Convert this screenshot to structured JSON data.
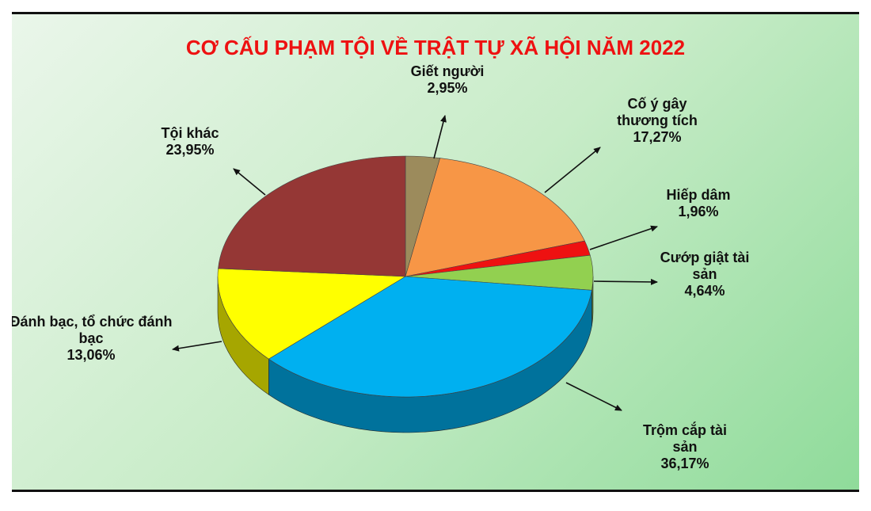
{
  "chart_data": {
    "type": "pie",
    "title": "CƠ CẤU PHẠM TỘI VỀ TRẬT TỰ XÃ HỘI NĂM 2022",
    "categories": [
      "Giết người",
      "Cố ý gây thương tích",
      "Hiếp dâm",
      "Cướp giật tài sản",
      "Trộm cắp tài sản",
      "Đánh bạc, tổ chức đánh bạc",
      "Tội khác"
    ],
    "values": [
      2.95,
      17.27,
      1.96,
      4.64,
      36.17,
      13.06,
      23.95
    ],
    "value_labels": [
      "2,95%",
      "17,27%",
      "1,96%",
      "4,64%",
      "36,17%",
      "13,06%",
      "23,95%"
    ],
    "colors": [
      "#9c8b5c",
      "#f79646",
      "#ee1111",
      "#92d050",
      "#00b0f0",
      "#ffff00",
      "#953735"
    ]
  }
}
